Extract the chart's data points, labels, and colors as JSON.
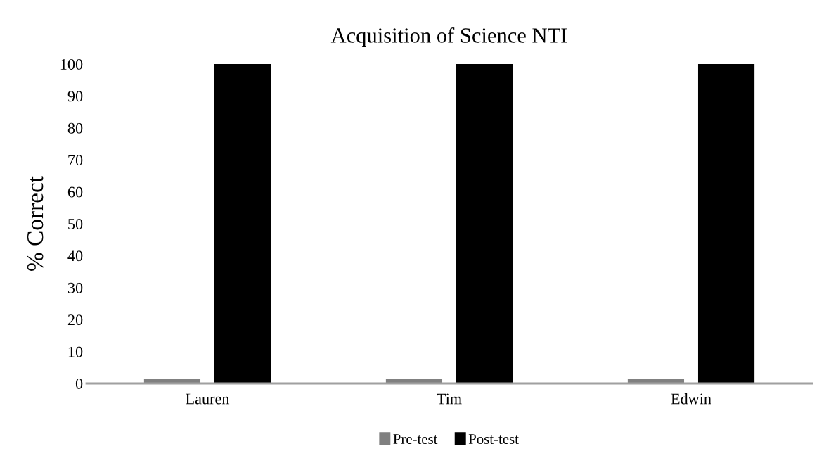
{
  "chart_data": {
    "type": "bar",
    "title": "Acquisition of Science NTI",
    "ylabel": "% Correct",
    "categories": [
      "Lauren",
      "Tim",
      "Edwin"
    ],
    "series": [
      {
        "name": "Pre-test",
        "color": "#808080",
        "values": [
          1.5,
          1.5,
          1.5
        ]
      },
      {
        "name": "Post-test",
        "color": "#000000",
        "values": [
          100,
          100,
          100
        ]
      }
    ],
    "ylim": [
      0,
      100
    ],
    "yticks": [
      0,
      10,
      20,
      30,
      40,
      50,
      60,
      70,
      80,
      90,
      100
    ],
    "grid": false,
    "legend": "bottom"
  }
}
